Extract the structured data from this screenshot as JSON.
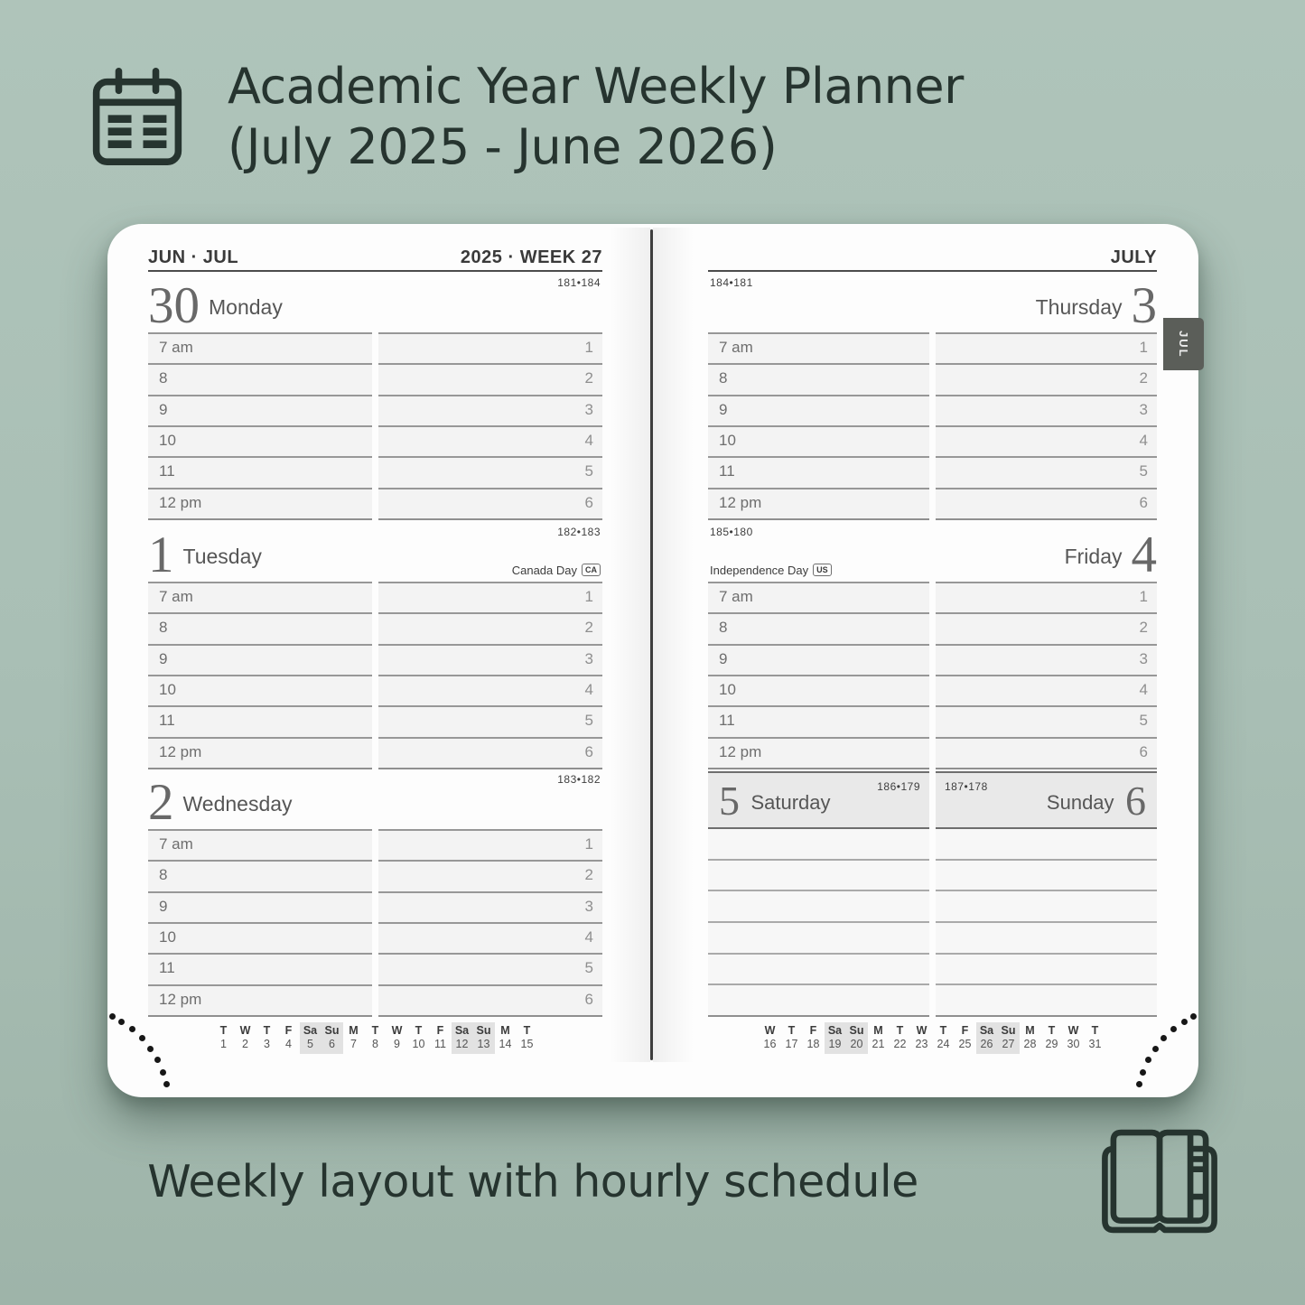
{
  "header": {
    "icon": "calendar-icon",
    "title_line1": "Academic Year Weekly Planner",
    "title_line2": "(July 2025 - June 2026)"
  },
  "footer": {
    "icon": "open-notebook-icon",
    "caption": "Weekly layout with hourly schedule"
  },
  "planner": {
    "spread": {
      "left_month": "JUN · JUL",
      "week_label": "2025 · WEEK 27",
      "right_month": "JULY",
      "side_tab": "JUL"
    },
    "hours": [
      "7 am",
      "8",
      "9",
      "10",
      "11",
      "12 pm"
    ],
    "slot_numbers": [
      "1",
      "2",
      "3",
      "4",
      "5",
      "6"
    ],
    "left_days": [
      {
        "num": "30",
        "name": "Monday",
        "pages": "181•184"
      },
      {
        "num": "1",
        "name": "Tuesday",
        "pages": "182•183",
        "holiday": {
          "label": "Canada Day",
          "badge": "CA",
          "align": "right"
        }
      },
      {
        "num": "2",
        "name": "Wednesday",
        "pages": "183•182"
      }
    ],
    "right_days": [
      {
        "num": "3",
        "name": "Thursday",
        "pages": "184•181"
      },
      {
        "num": "4",
        "name": "Friday",
        "pages": "185•180",
        "holiday": {
          "label": "Independence Day",
          "badge": "US",
          "align": "left"
        }
      }
    ],
    "weekend": {
      "saturday": {
        "num": "5",
        "name": "Saturday",
        "pages": "186•179"
      },
      "sunday": {
        "num": "6",
        "name": "Sunday",
        "pages": "187•178"
      }
    },
    "mini_calendar_left": {
      "day_letters": [
        "T",
        "W",
        "T",
        "F",
        "Sa",
        "Su",
        "M",
        "T",
        "W",
        "T",
        "F",
        "Sa",
        "Su",
        "M",
        "T"
      ],
      "dates": [
        "1",
        "2",
        "3",
        "4",
        "5",
        "6",
        "7",
        "8",
        "9",
        "10",
        "11",
        "12",
        "13",
        "14",
        "15"
      ],
      "weekend_columns": [
        4,
        5,
        11,
        12
      ]
    },
    "mini_calendar_right": {
      "day_letters": [
        "W",
        "T",
        "F",
        "Sa",
        "Su",
        "M",
        "T",
        "W",
        "T",
        "F",
        "Sa",
        "Su",
        "M",
        "T",
        "W",
        "T"
      ],
      "dates": [
        "16",
        "17",
        "18",
        "19",
        "20",
        "21",
        "22",
        "23",
        "24",
        "25",
        "26",
        "27",
        "28",
        "29",
        "30",
        "31"
      ],
      "weekend_columns": [
        3,
        4,
        10,
        11
      ]
    }
  },
  "colors": {
    "background": "#a9bfb5",
    "ink": "#26342f",
    "tab_bg": "#5b5e59",
    "row_fill": "#f3f3f3",
    "row_border": "#979797",
    "weekend_band": "#e9e9e9",
    "minical_weekend": "#e2e2e2"
  }
}
